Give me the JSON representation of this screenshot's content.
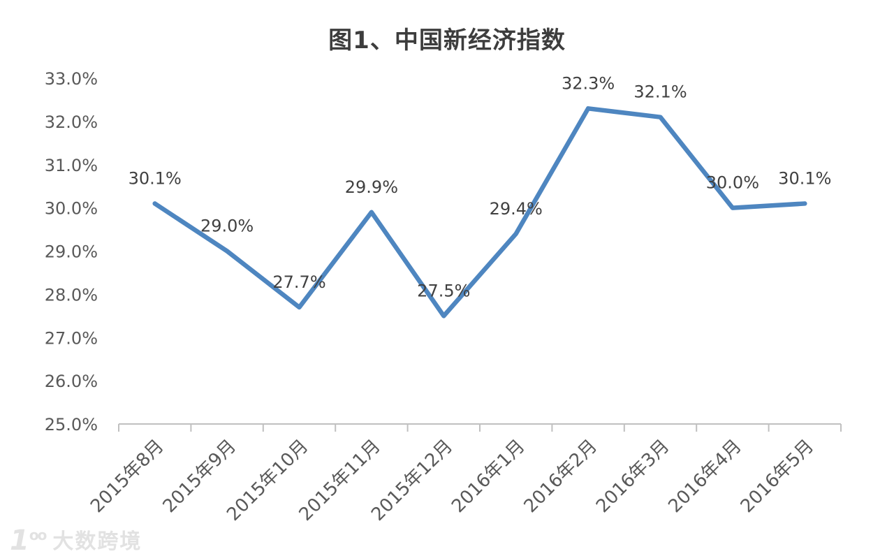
{
  "chart_data": {
    "type": "line",
    "title": "图1、中国新经济指数",
    "categories": [
      "2015年8月",
      "2015年9月",
      "2015年10月",
      "2015年11月",
      "2015年12月",
      "2016年1月",
      "2016年2月",
      "2016年3月",
      "2016年4月",
      "2016年5月"
    ],
    "series": [
      {
        "name": "中国新经济指数",
        "values": [
          30.1,
          29.0,
          27.7,
          29.9,
          27.5,
          29.4,
          32.3,
          32.1,
          30.0,
          30.1
        ],
        "point_labels": [
          "30.1%",
          "29.0%",
          "27.7%",
          "29.9%",
          "27.5%",
          "29.4%",
          "32.3%",
          "32.1%",
          "30.0%",
          "30.1%"
        ]
      }
    ],
    "xlabel": "",
    "ylabel": "",
    "ylim": [
      25.0,
      33.0
    ],
    "yticks": [
      {
        "value": 33.0,
        "label": "33.0%"
      },
      {
        "value": 32.0,
        "label": "32.0%"
      },
      {
        "value": 31.0,
        "label": "31.0%"
      },
      {
        "value": 30.0,
        "label": "30.0%"
      },
      {
        "value": 29.0,
        "label": "29.0%"
      },
      {
        "value": 28.0,
        "label": "28.0%"
      },
      {
        "value": 27.0,
        "label": "27.0%"
      },
      {
        "value": 26.0,
        "label": "26.0%"
      },
      {
        "value": 25.0,
        "label": "25.0%"
      }
    ],
    "grid": false,
    "legend_position": "none",
    "colors": {
      "line": "#4e86c0",
      "title": "#3d3d3d",
      "tick_labels": "#595959",
      "point_labels": "#404040",
      "axis": "#c0c0c0"
    }
  },
  "watermark": {
    "logo_one": "1",
    "logo_oo": "oo",
    "text": "大数跨境"
  }
}
